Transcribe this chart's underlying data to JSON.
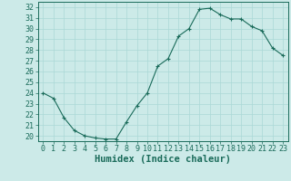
{
  "x": [
    0,
    1,
    2,
    3,
    4,
    5,
    6,
    7,
    8,
    9,
    10,
    11,
    12,
    13,
    14,
    15,
    16,
    17,
    18,
    19,
    20,
    21,
    22,
    23
  ],
  "y": [
    24.0,
    23.5,
    21.7,
    20.5,
    20.0,
    19.8,
    19.7,
    19.7,
    21.3,
    22.8,
    24.0,
    26.5,
    27.2,
    29.3,
    30.0,
    31.8,
    31.9,
    31.3,
    30.9,
    30.9,
    30.2,
    29.8,
    28.2,
    27.5
  ],
  "xlabel": "Humidex (Indice chaleur)",
  "xlim": [
    -0.5,
    23.5
  ],
  "ylim": [
    19.5,
    32.5
  ],
  "yticks": [
    20,
    21,
    22,
    23,
    24,
    25,
    26,
    27,
    28,
    29,
    30,
    31,
    32
  ],
  "xticks": [
    0,
    1,
    2,
    3,
    4,
    5,
    6,
    7,
    8,
    9,
    10,
    11,
    12,
    13,
    14,
    15,
    16,
    17,
    18,
    19,
    20,
    21,
    22,
    23
  ],
  "xtick_labels": [
    "0",
    "1",
    "2",
    "3",
    "4",
    "5",
    "6",
    "7",
    "8",
    "9",
    "10",
    "11",
    "12",
    "13",
    "14",
    "15",
    "16",
    "17",
    "18",
    "19",
    "20",
    "21",
    "22",
    "23"
  ],
  "line_color": "#1a6b5a",
  "marker": "+",
  "bg_color": "#cceae8",
  "grid_color": "#aad8d6",
  "tick_fontsize": 6,
  "xlabel_fontsize": 7.5
}
